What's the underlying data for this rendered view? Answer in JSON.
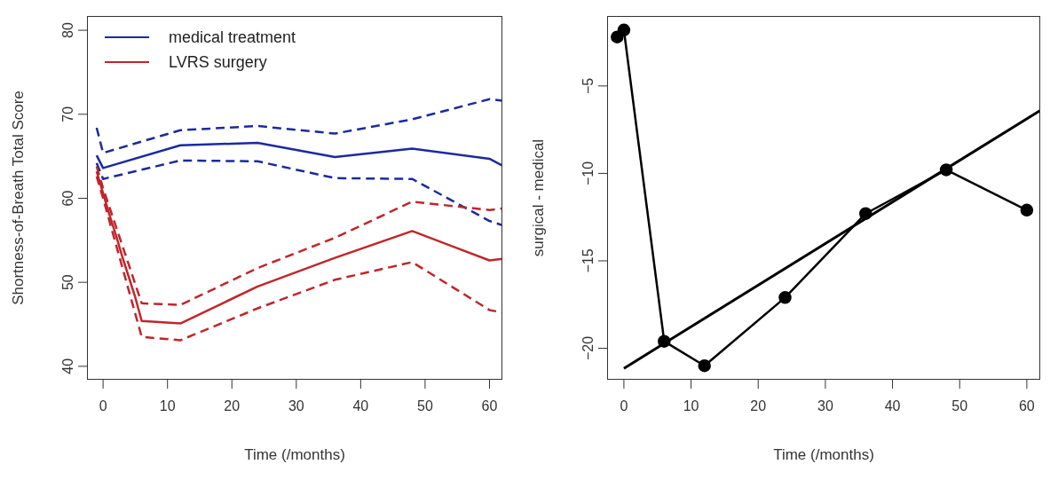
{
  "chart_data": [
    {
      "type": "line",
      "xlabel": "Time (/months)",
      "ylabel": "Shortness-of-Breath Total Score",
      "xlim": [
        -2.5,
        62
      ],
      "ylim": [
        38.4,
        81.7
      ],
      "xticks": [
        0,
        10,
        20,
        30,
        40,
        50,
        60
      ],
      "yticks": [
        40,
        50,
        60,
        70,
        80
      ],
      "legend": "top left",
      "marker": "none",
      "series": [
        {
          "name": "medical treatment",
          "color": "#1c2a9c",
          "line_style": "solid",
          "x": [
            -1,
            0,
            12,
            24,
            36,
            48,
            60,
            62
          ],
          "values": [
            65.1,
            63.6,
            66.3,
            66.6,
            64.9,
            65.9,
            64.7,
            63.9
          ]
        },
        {
          "color": "#1c2a9c",
          "line_style": "dashed",
          "x": [
            -1,
            0,
            12,
            24,
            36,
            48,
            60,
            62
          ],
          "values": [
            68.4,
            65.4,
            68.1,
            68.6,
            67.7,
            69.4,
            71.8,
            71.6
          ]
        },
        {
          "color": "#1c2a9c",
          "line_style": "dashed",
          "x": [
            -1,
            0,
            12,
            24,
            36,
            48,
            60,
            62
          ],
          "values": [
            64.2,
            62.3,
            64.5,
            64.4,
            62.4,
            62.3,
            57.3,
            56.8
          ]
        },
        {
          "name": "LVRS surgery",
          "color": "#c0262b",
          "line_style": "solid",
          "x": [
            -1,
            0,
            1,
            2,
            3,
            4,
            5,
            6,
            12,
            24,
            36,
            48,
            60,
            62
          ],
          "values": [
            63.2,
            60.6,
            58.0,
            55.6,
            53.0,
            50.6,
            48.2,
            45.4,
            45.1,
            49.5,
            52.9,
            56.1,
            52.6,
            52.8
          ]
        },
        {
          "color": "#c0262b",
          "line_style": "dashed",
          "x": [
            -1,
            0,
            6,
            12,
            24,
            36,
            48,
            60,
            62
          ],
          "values": [
            63.8,
            61.2,
            47.5,
            47.3,
            51.7,
            55.3,
            59.6,
            58.6,
            58.8
          ]
        },
        {
          "color": "#c0262b",
          "line_style": "dashed",
          "x": [
            -1,
            0,
            6,
            12,
            24,
            36,
            48,
            60,
            62
          ],
          "values": [
            62.6,
            60.0,
            43.5,
            43.1,
            46.9,
            50.3,
            52.4,
            46.7,
            46.4
          ]
        }
      ]
    },
    {
      "type": "line",
      "xlabel": "Time (/months)",
      "ylabel": "surgical - medical",
      "xlim": [
        -2.5,
        62
      ],
      "ylim": [
        -21.8,
        -1
      ],
      "xticks": [
        0,
        10,
        20,
        30,
        40,
        50,
        60
      ],
      "yticks": [
        -20,
        -15,
        -10,
        -5
      ],
      "series": [
        {
          "color": "#000000",
          "line_style": "solid",
          "marker": "circle",
          "x": [
            -1,
            0,
            6,
            12,
            24,
            36,
            48,
            60
          ],
          "values": [
            -2.2,
            -1.8,
            -19.6,
            -21.0,
            -17.1,
            -12.3,
            -9.8,
            -12.1
          ]
        },
        {
          "color": "#000000",
          "line_style": "solid",
          "marker": "none",
          "x": [
            0,
            62
          ],
          "values": [
            -21.15,
            -6.4
          ]
        }
      ]
    }
  ]
}
